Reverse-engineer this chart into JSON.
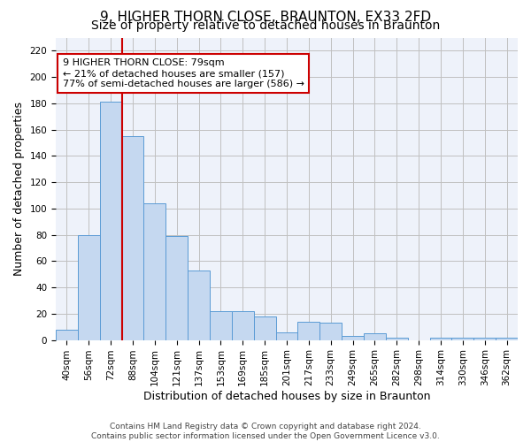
{
  "title_line1": "9, HIGHER THORN CLOSE, BRAUNTON, EX33 2FD",
  "title_line2": "Size of property relative to detached houses in Braunton",
  "xlabel": "Distribution of detached houses by size in Braunton",
  "ylabel": "Number of detached properties",
  "footnote": "Contains HM Land Registry data © Crown copyright and database right 2024.\nContains public sector information licensed under the Open Government Licence v3.0.",
  "categories": [
    "40sqm",
    "56sqm",
    "72sqm",
    "88sqm",
    "104sqm",
    "121sqm",
    "137sqm",
    "153sqm",
    "169sqm",
    "185sqm",
    "201sqm",
    "217sqm",
    "233sqm",
    "249sqm",
    "265sqm",
    "282sqm",
    "298sqm",
    "314sqm",
    "330sqm",
    "346sqm",
    "362sqm"
  ],
  "values": [
    8,
    80,
    181,
    155,
    104,
    79,
    53,
    22,
    22,
    18,
    6,
    14,
    13,
    3,
    5,
    2,
    0,
    2,
    2,
    2,
    2
  ],
  "bar_color": "#c5d8f0",
  "bar_edge_color": "#5b9bd5",
  "red_line_x": 2.5,
  "red_line_color": "#cc0000",
  "annotation_text": "9 HIGHER THORN CLOSE: 79sqm\n← 21% of detached houses are smaller (157)\n77% of semi-detached houses are larger (586) →",
  "annotation_box_color": "white",
  "annotation_box_edge": "#cc0000",
  "ylim": [
    0,
    230
  ],
  "yticks": [
    0,
    20,
    40,
    60,
    80,
    100,
    120,
    140,
    160,
    180,
    200,
    220
  ],
  "grid_color": "#c0c0c0",
  "background_color": "#eef2fa",
  "title_fontsize": 11,
  "subtitle_fontsize": 10,
  "tick_fontsize": 7.5,
  "xlabel_fontsize": 9,
  "ylabel_fontsize": 9
}
